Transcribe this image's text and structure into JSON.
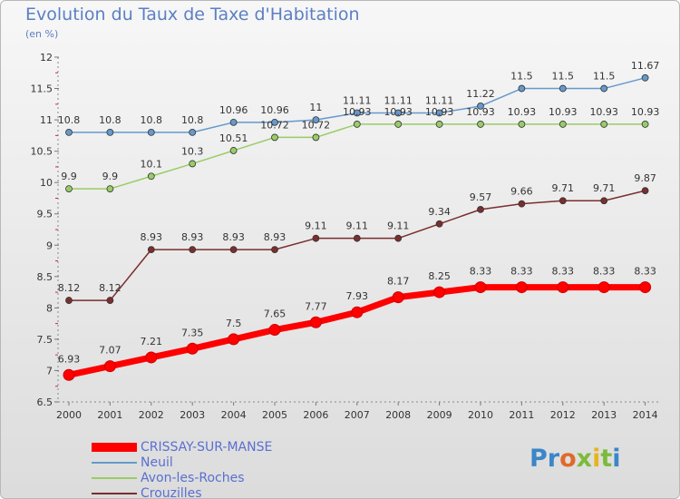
{
  "title": "Evolution du Taux de Taxe d'Habitation",
  "unit_label": "(en %)",
  "logo": {
    "text": "Proxiti",
    "colors": [
      "#3a86c8",
      "#e06a2a",
      "#7cbb3a",
      "#e8b41d"
    ]
  },
  "chart_data": {
    "type": "line",
    "x": [
      "2000",
      "2001",
      "2002",
      "2003",
      "2004",
      "2005",
      "2006",
      "2007",
      "2008",
      "2009",
      "2010",
      "2011",
      "2012",
      "2013",
      "2014"
    ],
    "ylim": [
      6.5,
      12
    ],
    "yticks": [
      "6.5",
      "7",
      "7.5",
      "8",
      "8.5",
      "9",
      "9.5",
      "10",
      "10.5",
      "11",
      "11.5",
      "12"
    ],
    "grid": false,
    "legend_position": "bottom-left",
    "series": [
      {
        "name": "CRISSAY-SUR-MANSE",
        "color": "#ff0000",
        "values": [
          6.93,
          7.07,
          7.21,
          7.35,
          7.5,
          7.65,
          7.77,
          7.93,
          8.17,
          8.25,
          8.33,
          8.33,
          8.33,
          8.33,
          8.33
        ],
        "labels": [
          "6.93",
          "7.07",
          "7.21",
          "7.35",
          "7.5",
          "7.65",
          "7.77",
          "7.93",
          "8.17",
          "8.25",
          "8.33",
          "8.33",
          "8.33",
          "8.33",
          "8.33"
        ]
      },
      {
        "name": "Neuil",
        "color": "#6699cc",
        "values": [
          10.8,
          10.8,
          10.8,
          10.8,
          10.96,
          10.96,
          11,
          11.11,
          11.11,
          11.11,
          11.22,
          11.5,
          11.5,
          11.5,
          11.67
        ],
        "labels": [
          "10.8",
          "10.8",
          "10.8",
          "10.8",
          "10.96",
          "10.96",
          "11",
          "11.11",
          "11.11",
          "11.11",
          "11.22",
          "11.5",
          "11.5",
          "11.5",
          "11.67"
        ]
      },
      {
        "name": "Avon-les-Roches",
        "color": "#99cc66",
        "values": [
          9.9,
          9.9,
          10.1,
          10.3,
          10.51,
          10.72,
          10.72,
          10.93,
          10.93,
          10.93,
          10.93,
          10.93,
          10.93,
          10.93,
          10.93
        ],
        "labels": [
          "9.9",
          "9.9",
          "10.1",
          "10.3",
          "10.51",
          "10.72",
          "10.72",
          "10.93",
          "10.93",
          "10.93",
          "10.93",
          "10.93",
          "10.93",
          "10.93",
          "10.93"
        ]
      },
      {
        "name": "Crouzilles",
        "color": "#7a2e2e",
        "values": [
          8.12,
          8.12,
          8.93,
          8.93,
          8.93,
          8.93,
          9.11,
          9.11,
          9.11,
          9.34,
          9.57,
          9.66,
          9.71,
          9.71,
          9.87
        ],
        "labels": [
          "8.12",
          "8.12",
          "8.93",
          "8.93",
          "8.93",
          "8.93",
          "9.11",
          "9.11",
          "9.11",
          "9.34",
          "9.57",
          "9.66",
          "9.71",
          "9.71",
          "9.87"
        ]
      }
    ]
  }
}
